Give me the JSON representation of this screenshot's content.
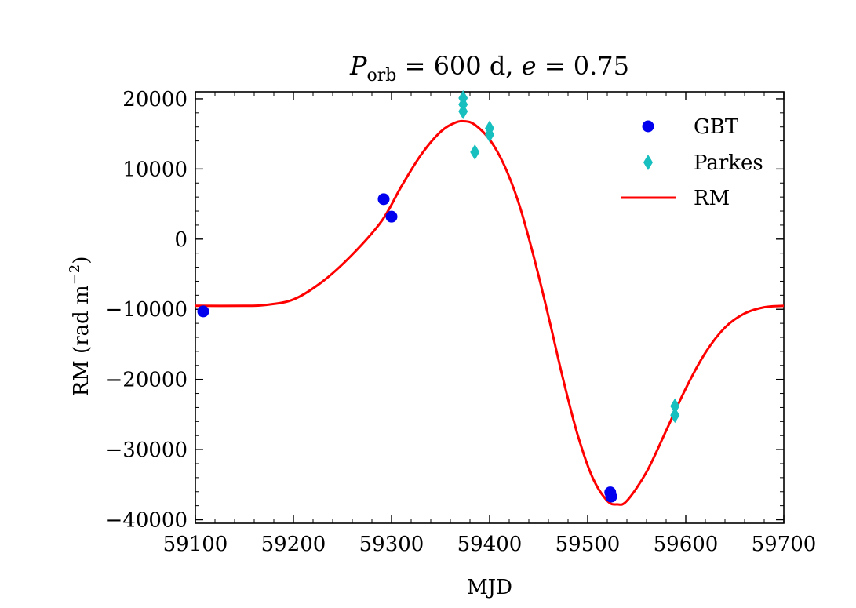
{
  "chart_data": {
    "type": "scatter",
    "title": {
      "P": "P",
      "orb": "orb",
      "eq1": " = 600 d, ",
      "e": "e",
      "eq2": " = 0.75"
    },
    "xlabel": "MJD",
    "ylabel": "RM (rad m",
    "ylabel_sup": "−2",
    "ylabel_close": ")",
    "xlim": [
      59100,
      59700
    ],
    "ylim": [
      -40500,
      21000
    ],
    "xticks": [
      {
        "value": 59100,
        "label": "59100"
      },
      {
        "value": 59200,
        "label": "59200"
      },
      {
        "value": 59300,
        "label": "59300"
      },
      {
        "value": 59400,
        "label": "59400"
      },
      {
        "value": 59500,
        "label": "59500"
      },
      {
        "value": 59600,
        "label": "59600"
      },
      {
        "value": 59700,
        "label": "59700"
      }
    ],
    "yticks": [
      {
        "value": 20000,
        "label": "20000"
      },
      {
        "value": 10000,
        "label": "10000"
      },
      {
        "value": 0,
        "label": "0"
      },
      {
        "value": -10000,
        "label": "−10000"
      },
      {
        "value": -20000,
        "label": "−20000"
      },
      {
        "value": -30000,
        "label": "−30000"
      },
      {
        "value": -40000,
        "label": "−40000"
      }
    ],
    "grid": false,
    "legend_position": "top-right",
    "series": [
      {
        "name": "GBT",
        "kind": "scatter",
        "marker": "circle",
        "color": "#0000ee",
        "points": [
          {
            "x": 59108,
            "y": -10300
          },
          {
            "x": 59292,
            "y": 5700
          },
          {
            "x": 59300,
            "y": 3200
          },
          {
            "x": 59523,
            "y": -36100
          },
          {
            "x": 59524,
            "y": -36700
          }
        ]
      },
      {
        "name": "Parkes",
        "kind": "scatter",
        "marker": "diamond",
        "color": "#17bfbf",
        "points": [
          {
            "x": 59373,
            "y": 20100
          },
          {
            "x": 59373,
            "y": 19200
          },
          {
            "x": 59373,
            "y": 18200
          },
          {
            "x": 59385,
            "y": 12400
          },
          {
            "x": 59400,
            "y": 15800
          },
          {
            "x": 59400,
            "y": 14900
          },
          {
            "x": 59589,
            "y": -23800
          },
          {
            "x": 59589,
            "y": -25100
          }
        ]
      },
      {
        "name": "RM",
        "kind": "line",
        "color": "#ff0000",
        "points": [
          {
            "x": 59100,
            "y": -9500
          },
          {
            "x": 59150,
            "y": -9500
          },
          {
            "x": 59170,
            "y": -9400
          },
          {
            "x": 59200,
            "y": -8600
          },
          {
            "x": 59230,
            "y": -6000
          },
          {
            "x": 59260,
            "y": -2200
          },
          {
            "x": 59290,
            "y": 2600
          },
          {
            "x": 59310,
            "y": 7500
          },
          {
            "x": 59330,
            "y": 12000
          },
          {
            "x": 59350,
            "y": 15300
          },
          {
            "x": 59365,
            "y": 16600
          },
          {
            "x": 59375,
            "y": 16800
          },
          {
            "x": 59385,
            "y": 16300
          },
          {
            "x": 59400,
            "y": 14200
          },
          {
            "x": 59415,
            "y": 10500
          },
          {
            "x": 59430,
            "y": 5000
          },
          {
            "x": 59445,
            "y": -2500
          },
          {
            "x": 59460,
            "y": -11000
          },
          {
            "x": 59475,
            "y": -20000
          },
          {
            "x": 59490,
            "y": -28000
          },
          {
            "x": 59505,
            "y": -34000
          },
          {
            "x": 59520,
            "y": -37300
          },
          {
            "x": 59530,
            "y": -37800
          },
          {
            "x": 59540,
            "y": -37300
          },
          {
            "x": 59560,
            "y": -33200
          },
          {
            "x": 59580,
            "y": -27300
          },
          {
            "x": 59600,
            "y": -21300
          },
          {
            "x": 59620,
            "y": -16200
          },
          {
            "x": 59640,
            "y": -12600
          },
          {
            "x": 59660,
            "y": -10600
          },
          {
            "x": 59680,
            "y": -9700
          },
          {
            "x": 59700,
            "y": -9500
          }
        ]
      }
    ]
  }
}
